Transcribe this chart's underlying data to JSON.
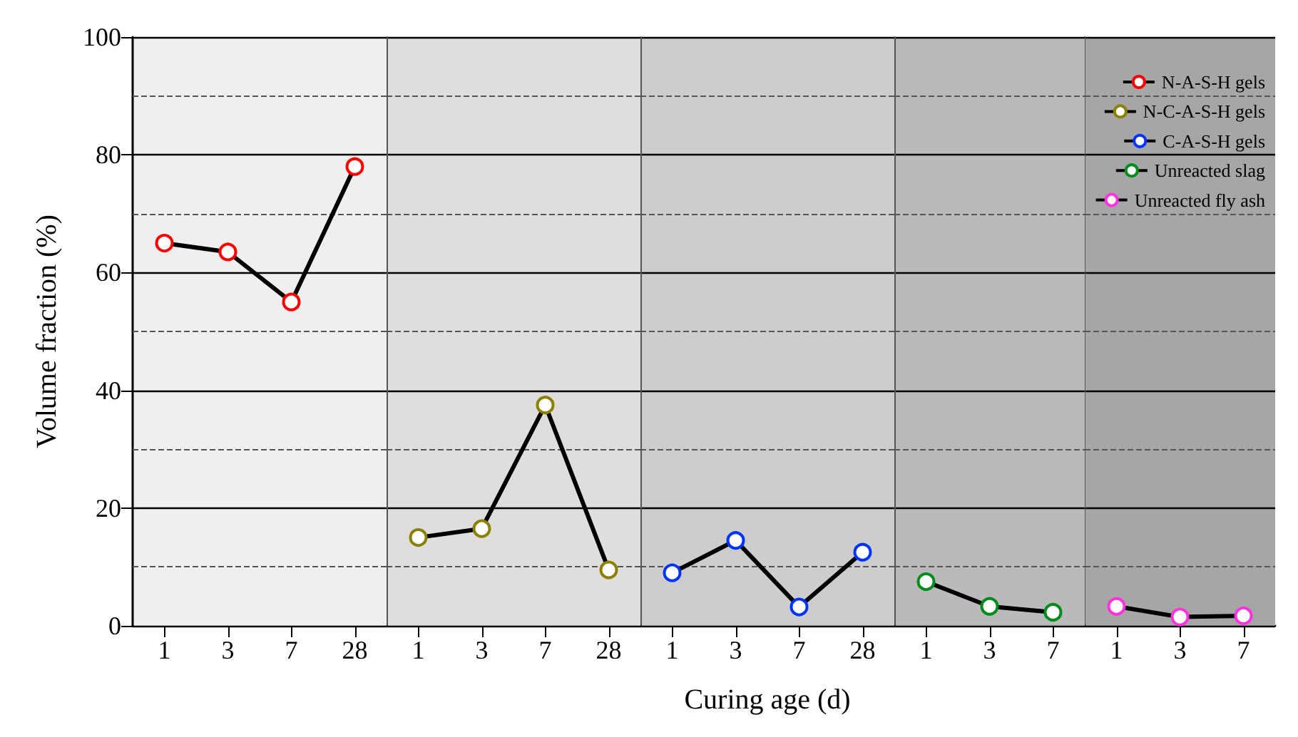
{
  "chart_data": [
    {
      "type": "line",
      "ylabel": "Volume fraction (%)",
      "categories": [
        "1",
        "3",
        "7",
        "28"
      ],
      "ylim": [
        0,
        100
      ],
      "yticks": [
        0,
        20,
        40,
        60,
        80,
        100
      ],
      "grid": "y",
      "legend": "top right",
      "marker": "circle",
      "line_style": "solid",
      "series": [
        {
          "name": "N-A-S-H gels",
          "color": "#ff0000",
          "values": [
            65,
            63.5,
            55,
            78
          ]
        }
      ],
      "bands": [
        {
          "axis": "x",
          "from": "1",
          "to": "28",
          "color": "#efefef"
        }
      ],
      "ref_lines": [
        {
          "axis": "y",
          "value": 10,
          "line_style": "dashed"
        },
        {
          "axis": "y",
          "value": 30,
          "line_style": "dashed"
        },
        {
          "axis": "y",
          "value": 50,
          "line_style": "dashed"
        },
        {
          "axis": "y",
          "value": 70,
          "line_style": "dashed"
        },
        {
          "axis": "y",
          "value": 90,
          "line_style": "dashed"
        }
      ]
    },
    {
      "type": "line",
      "categories": [
        "1",
        "3",
        "7",
        "28"
      ],
      "ylim": [
        0,
        100
      ],
      "yticks": [
        0,
        20,
        40,
        60,
        80,
        100
      ],
      "tick_labels": "x",
      "grid": "y",
      "legend": "top right",
      "marker": "circle",
      "line_style": "solid",
      "series": [
        {
          "name": "N-C-A-S-H gels",
          "color": "#8b8000",
          "values": [
            15,
            16.5,
            37.5,
            9.5
          ]
        }
      ],
      "bands": [
        {
          "axis": "x",
          "from": "1",
          "to": "28",
          "color": "#dedede"
        }
      ],
      "ref_lines": [
        {
          "axis": "y",
          "value": 10,
          "line_style": "dashed"
        },
        {
          "axis": "y",
          "value": 30,
          "line_style": "dashed"
        },
        {
          "axis": "y",
          "value": 50,
          "line_style": "dashed"
        },
        {
          "axis": "y",
          "value": 70,
          "line_style": "dashed"
        },
        {
          "axis": "y",
          "value": 90,
          "line_style": "dashed"
        }
      ]
    },
    {
      "type": "line",
      "xlabel": "Curing age (d)",
      "categories": [
        "1",
        "3",
        "7",
        "28"
      ],
      "ylim": [
        0,
        100
      ],
      "yticks": [
        0,
        20,
        40,
        60,
        80,
        100
      ],
      "tick_labels": "x",
      "grid": "y",
      "legend": "top right",
      "marker": "circle",
      "line_style": "solid",
      "series": [
        {
          "name": "C-A-S-H gels",
          "color": "#0033ff",
          "values": [
            9,
            14.5,
            3.2,
            12.5
          ]
        }
      ],
      "bands": [
        {
          "axis": "x",
          "from": "1",
          "to": "28",
          "color": "#cdcdcd"
        }
      ],
      "ref_lines": [
        {
          "axis": "y",
          "value": 10,
          "line_style": "dashed"
        },
        {
          "axis": "y",
          "value": 30,
          "line_style": "dashed"
        },
        {
          "axis": "y",
          "value": 50,
          "line_style": "dashed"
        },
        {
          "axis": "y",
          "value": 70,
          "line_style": "dashed"
        },
        {
          "axis": "y",
          "value": 90,
          "line_style": "dashed"
        }
      ]
    },
    {
      "type": "line",
      "categories": [
        "1",
        "3",
        "7"
      ],
      "ylim": [
        0,
        100
      ],
      "yticks": [
        0,
        20,
        40,
        60,
        80,
        100
      ],
      "tick_labels": "x",
      "grid": "y",
      "legend": "top right",
      "marker": "circle",
      "line_style": "solid",
      "series": [
        {
          "name": "Unreacted slag",
          "color": "#008c1a",
          "values": [
            7.5,
            3.3,
            2.3
          ]
        }
      ],
      "bands": [
        {
          "axis": "x",
          "from": "1",
          "to": "7",
          "color": "#bababa"
        }
      ],
      "ref_lines": [
        {
          "axis": "y",
          "value": 10,
          "line_style": "dashed"
        },
        {
          "axis": "y",
          "value": 30,
          "line_style": "dashed"
        },
        {
          "axis": "y",
          "value": 50,
          "line_style": "dashed"
        },
        {
          "axis": "y",
          "value": 70,
          "line_style": "dashed"
        },
        {
          "axis": "y",
          "value": 90,
          "line_style": "dashed"
        }
      ]
    },
    {
      "type": "line",
      "categories": [
        "1",
        "3",
        "7"
      ],
      "ylim": [
        0,
        100
      ],
      "yticks": [
        0,
        20,
        40,
        60,
        80,
        100
      ],
      "tick_labels": "x",
      "grid": "y",
      "legend": "top right",
      "marker": "circle",
      "line_style": "solid",
      "series": [
        {
          "name": "Unreacted fly ash",
          "color": "#ff33dd",
          "values": [
            3.3,
            1.5,
            1.7
          ]
        }
      ],
      "bands": [
        {
          "axis": "x",
          "from": "1",
          "to": "7",
          "color": "#a6a6a6"
        }
      ],
      "ref_lines": [
        {
          "axis": "y",
          "value": 10,
          "line_style": "dashed"
        },
        {
          "axis": "y",
          "value": 30,
          "line_style": "dashed"
        },
        {
          "axis": "y",
          "value": 50,
          "line_style": "dashed"
        },
        {
          "axis": "y",
          "value": 70,
          "line_style": "dashed"
        },
        {
          "axis": "y",
          "value": 90,
          "line_style": "dashed"
        }
      ]
    }
  ]
}
